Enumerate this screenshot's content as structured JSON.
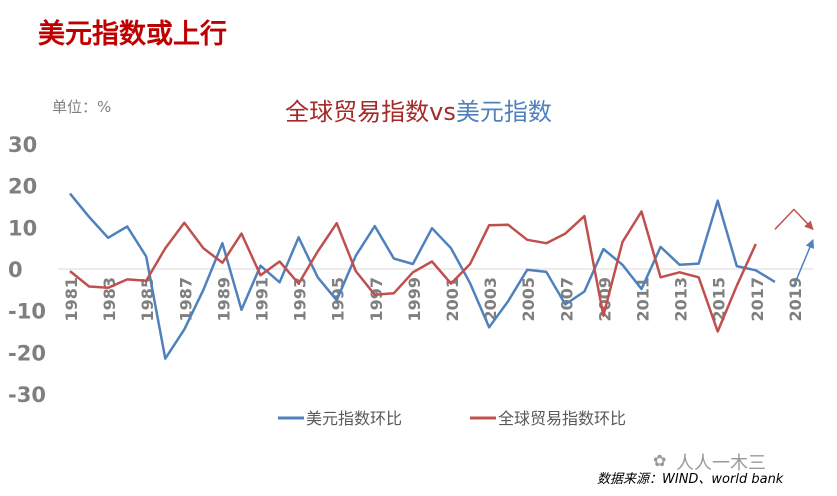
{
  "page": {
    "heading": "美元指数或上行",
    "unit_label": "单位：%",
    "source": "数据来源：WIND、world bank",
    "watermark": "人人一木三"
  },
  "chart_data": {
    "type": "line",
    "title_part1": "全球贸易指数vs",
    "title_part2": "美元指数",
    "ylim": [
      -30,
      30
    ],
    "yticks": [
      -30,
      -20,
      -10,
      0,
      10,
      20,
      30
    ],
    "x": [
      1981,
      1982,
      1983,
      1984,
      1985,
      1986,
      1987,
      1988,
      1989,
      1990,
      1991,
      1992,
      1993,
      1994,
      1995,
      1996,
      1997,
      1998,
      1999,
      2000,
      2001,
      2002,
      2003,
      2004,
      2005,
      2006,
      2007,
      2008,
      2009,
      2010,
      2011,
      2012,
      2013,
      2014,
      2015,
      2016,
      2017,
      2018,
      2019,
      2020
    ],
    "xtick_labels": [
      "1981",
      "1983",
      "1985",
      "1987",
      "1989",
      "1991",
      "1993",
      "1995",
      "1997",
      "1999",
      "2001",
      "2003",
      "2005",
      "2007",
      "2009",
      "2011",
      "2013",
      "2015",
      "2017",
      "2019"
    ],
    "series": [
      {
        "name": "美元指数环比",
        "color": "#4f81bd",
        "values": [
          18.1,
          12.5,
          7.5,
          10.2,
          3.0,
          -21.5,
          -14.5,
          -5.0,
          6.2,
          -9.8,
          0.8,
          -3.2,
          7.6,
          -2.0,
          -7.5,
          3.2,
          10.3,
          2.5,
          1.2,
          9.8,
          5.0,
          -3.4,
          -14.0,
          -7.7,
          -0.2,
          -0.7,
          -8.5,
          -5.4,
          4.8,
          1.0,
          -4.8,
          5.3,
          1.0,
          1.3,
          16.4,
          0.7,
          -0.3,
          -3.1,
          null,
          null
        ]
      },
      {
        "name": "全球贸易指数环比",
        "color": "#c0504d",
        "values": [
          -0.5,
          -4.2,
          -4.5,
          -2.5,
          -2.8,
          5.0,
          11.1,
          5.0,
          1.5,
          8.5,
          -1.5,
          1.8,
          -3.5,
          4.2,
          11.0,
          -0.5,
          -6.2,
          -5.8,
          -0.8,
          1.8,
          -3.5,
          1.2,
          10.5,
          10.6,
          7.0,
          6.2,
          8.5,
          12.7,
          -11.2,
          6.5,
          13.8,
          -2.0,
          -0.8,
          -2.0,
          -15.0,
          -4.0,
          6.0,
          null,
          null,
          null
        ]
      }
    ],
    "trend_arrows": [
      {
        "color": "#c0504d",
        "points": [
          [
            2018,
            9.5
          ],
          [
            2019,
            14.3
          ],
          [
            2020,
            9.5
          ]
        ]
      },
      {
        "color": "#4f81bd",
        "points": [
          [
            2019,
            -4.0
          ],
          [
            2020,
            7.0
          ]
        ]
      }
    ]
  }
}
